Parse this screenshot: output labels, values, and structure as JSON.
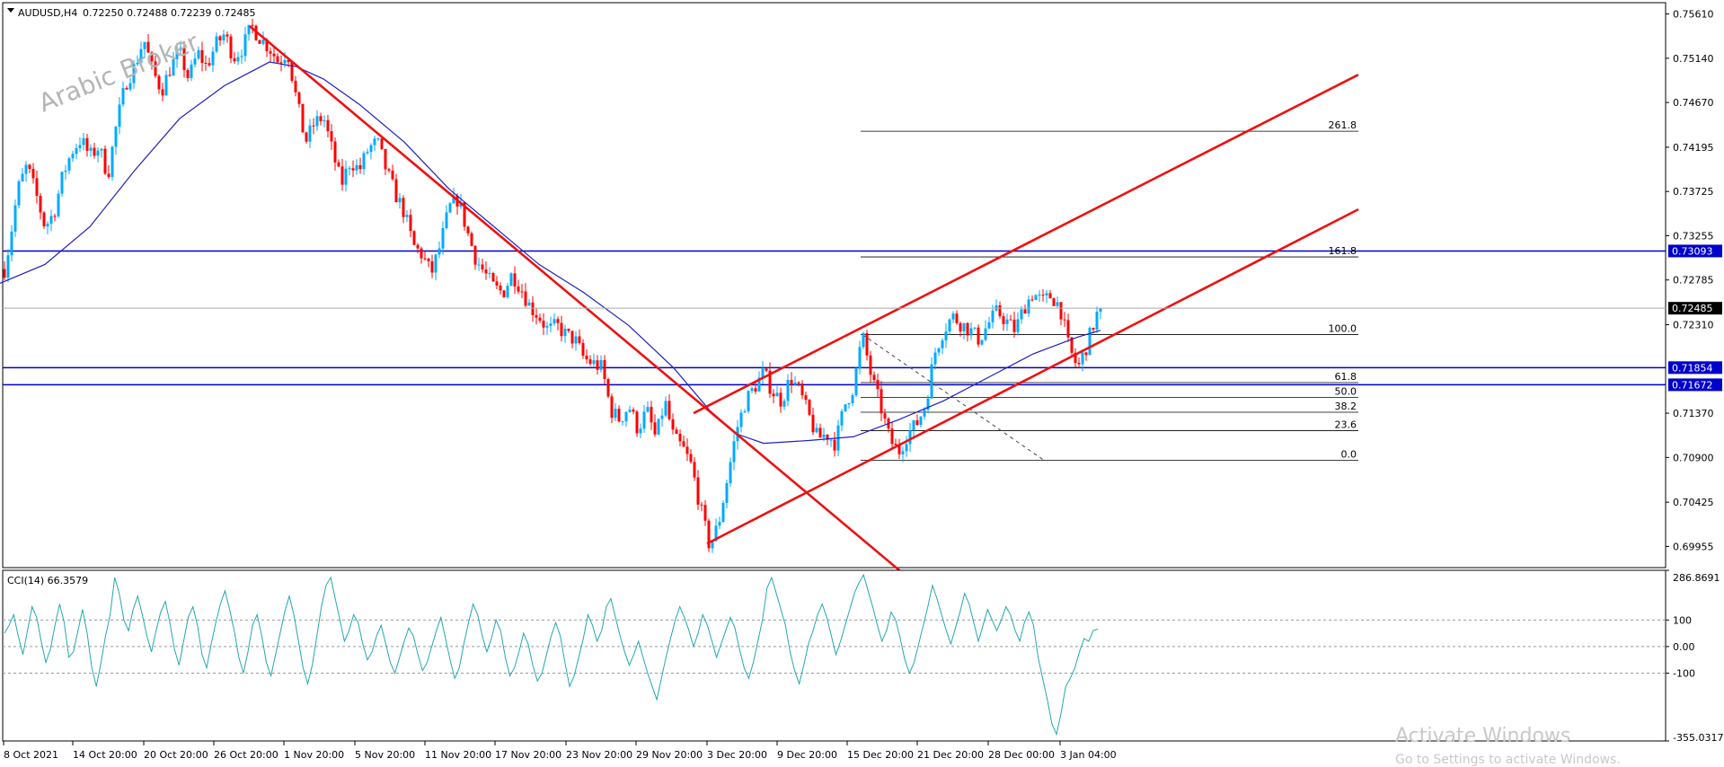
{
  "header": {
    "symbol": "AUDUSD,H4",
    "ohlc": "0.72250 0.72488 0.72239 0.72485"
  },
  "watermark": "Arabic Broker",
  "windows_notice": {
    "line1": "Activate Windows",
    "line2": "Go to Settings to activate Windows."
  },
  "chart_data": [
    {
      "type": "candlestick",
      "title": "AUDUSD,H4",
      "ylim": [
        0.6973,
        0.7573
      ],
      "y_ticks": [
        "0.75610",
        "0.75140",
        "0.74670",
        "0.74195",
        "0.73725",
        "0.73255",
        "0.72785",
        "0.72310",
        "0.71370",
        "0.70900",
        "0.70425",
        "0.69955"
      ],
      "x_ticks": [
        "8 Oct 2021",
        "14 Oct 20:00",
        "20 Oct 20:00",
        "26 Oct 20:00",
        "1 Nov 20:00",
        "5 Nov 20:00",
        "11 Nov 20:00",
        "17 Nov 20:00",
        "23 Nov 20:00",
        "29 Nov 20:00",
        "3 Dec 20:00",
        "9 Dec 20:00",
        "15 Dec 20:00",
        "21 Dec 20:00",
        "28 Dec 00:00",
        "3 Jan 04:00"
      ],
      "current_price": "0.72485",
      "price_path": [
        [
          0,
          0.7265
        ],
        [
          10,
          0.7315
        ],
        [
          20,
          0.7375
        ],
        [
          30,
          0.74
        ],
        [
          40,
          0.737
        ],
        [
          50,
          0.7335
        ],
        [
          60,
          0.735
        ],
        [
          70,
          0.739
        ],
        [
          80,
          0.7415
        ],
        [
          90,
          0.7428
        ],
        [
          100,
          0.741
        ],
        [
          110,
          0.742
        ],
        [
          120,
          0.739
        ],
        [
          130,
          0.7445
        ],
        [
          140,
          0.7488
        ],
        [
          150,
          0.7505
        ],
        [
          160,
          0.7535
        ],
        [
          170,
          0.75
        ],
        [
          180,
          0.748
        ],
        [
          190,
          0.7505
        ],
        [
          200,
          0.752
        ],
        [
          210,
          0.7492
        ],
        [
          220,
          0.752
        ],
        [
          230,
          0.7505
        ],
        [
          240,
          0.7528
        ],
        [
          250,
          0.754
        ],
        [
          260,
          0.7515
        ],
        [
          270,
          0.7525
        ],
        [
          280,
          0.7548
        ],
        [
          290,
          0.7535
        ],
        [
          300,
          0.7525
        ],
        [
          310,
          0.751
        ],
        [
          320,
          0.7522
        ],
        [
          330,
          0.747
        ],
        [
          340,
          0.7425
        ],
        [
          350,
          0.7445
        ],
        [
          360,
          0.7452
        ],
        [
          370,
          0.7415
        ],
        [
          380,
          0.738
        ],
        [
          390,
          0.7405
        ],
        [
          400,
          0.7395
        ],
        [
          410,
          0.7418
        ],
        [
          420,
          0.7425
        ],
        [
          430,
          0.7395
        ],
        [
          440,
          0.737
        ],
        [
          450,
          0.735
        ],
        [
          460,
          0.7315
        ],
        [
          470,
          0.7305
        ],
        [
          480,
          0.7285
        ],
        [
          490,
          0.7315
        ],
        [
          500,
          0.7355
        ],
        [
          510,
          0.7365
        ],
        [
          520,
          0.733
        ],
        [
          530,
          0.73
        ],
        [
          540,
          0.7285
        ],
        [
          550,
          0.727
        ],
        [
          560,
          0.7265
        ],
        [
          570,
          0.7285
        ],
        [
          580,
          0.727
        ],
        [
          590,
          0.725
        ],
        [
          600,
          0.724
        ],
        [
          610,
          0.7225
        ],
        [
          620,
          0.723
        ],
        [
          630,
          0.722
        ],
        [
          640,
          0.7215
        ],
        [
          650,
          0.7195
        ],
        [
          660,
          0.719
        ],
        [
          670,
          0.7185
        ],
        [
          680,
          0.714
        ],
        [
          690,
          0.713
        ],
        [
          700,
          0.7145
        ],
        [
          710,
          0.712
        ],
        [
          720,
          0.714
        ],
        [
          730,
          0.711
        ],
        [
          740,
          0.715
        ],
        [
          750,
          0.711
        ],
        [
          760,
          0.71
        ],
        [
          770,
          0.708
        ],
        [
          780,
          0.7035
        ],
        [
          790,
          0.6995
        ],
        [
          800,
          0.702
        ],
        [
          810,
          0.707
        ],
        [
          820,
          0.712
        ],
        [
          830,
          0.715
        ],
        [
          840,
          0.7165
        ],
        [
          850,
          0.718
        ],
        [
          860,
          0.716
        ],
        [
          870,
          0.715
        ],
        [
          880,
          0.7175
        ],
        [
          890,
          0.716
        ],
        [
          900,
          0.7135
        ],
        [
          910,
          0.711
        ],
        [
          920,
          0.7115
        ],
        [
          930,
          0.7105
        ],
        [
          940,
          0.7145
        ],
        [
          950,
          0.7165
        ],
        [
          960,
          0.722
        ],
        [
          970,
          0.7175
        ],
        [
          980,
          0.7145
        ],
        [
          990,
          0.711
        ],
        [
          1000,
          0.7095
        ],
        [
          1010,
          0.7115
        ],
        [
          1020,
          0.7125
        ],
        [
          1030,
          0.7145
        ],
        [
          1040,
          0.72
        ],
        [
          1050,
          0.7225
        ],
        [
          1060,
          0.724
        ],
        [
          1070,
          0.7232
        ],
        [
          1080,
          0.7225
        ],
        [
          1090,
          0.7215
        ],
        [
          1100,
          0.7232
        ],
        [
          1110,
          0.7245
        ],
        [
          1120,
          0.7235
        ],
        [
          1130,
          0.7225
        ],
        [
          1140,
          0.725
        ],
        [
          1150,
          0.7265
        ],
        [
          1160,
          0.7255
        ],
        [
          1170,
          0.7262
        ],
        [
          1180,
          0.725
        ],
        [
          1190,
          0.7205
        ],
        [
          1200,
          0.7185
        ],
        [
          1210,
          0.721
        ],
        [
          1220,
          0.724
        ],
        [
          1225,
          0.7248
        ]
      ],
      "moving_average_path": [
        [
          0,
          0.7275
        ],
        [
          50,
          0.7295
        ],
        [
          100,
          0.7335
        ],
        [
          150,
          0.7395
        ],
        [
          200,
          0.745
        ],
        [
          250,
          0.7485
        ],
        [
          300,
          0.751
        ],
        [
          330,
          0.7505
        ],
        [
          360,
          0.7492
        ],
        [
          400,
          0.7465
        ],
        [
          450,
          0.7425
        ],
        [
          500,
          0.7375
        ],
        [
          550,
          0.7335
        ],
        [
          600,
          0.7295
        ],
        [
          650,
          0.7265
        ],
        [
          700,
          0.723
        ],
        [
          750,
          0.7185
        ],
        [
          790,
          0.714
        ],
        [
          820,
          0.7115
        ],
        [
          850,
          0.7105
        ],
        [
          900,
          0.7108
        ],
        [
          950,
          0.7112
        ],
        [
          1000,
          0.713
        ],
        [
          1050,
          0.715
        ],
        [
          1100,
          0.7175
        ],
        [
          1150,
          0.72
        ],
        [
          1200,
          0.7218
        ],
        [
          1225,
          0.7225
        ]
      ],
      "horizontal_levels": [
        {
          "price": 0.73093,
          "label": "0.73093",
          "label_color": "#0000cc"
        },
        {
          "price": 0.71854,
          "label": "0.71854",
          "label_color": "#0000cc"
        },
        {
          "price": 0.71672,
          "label": "0.71672",
          "label_color": "#0000cc"
        }
      ],
      "fibonacci": {
        "x_start": 958,
        "x_end": 1512,
        "p100": 0.72205,
        "p0": 0.7087,
        "levels": [
          {
            "ratio": 2.618,
            "label": "261.8"
          },
          {
            "ratio": 1.618,
            "label": "161.8"
          },
          {
            "ratio": 1.0,
            "label": "100.0"
          },
          {
            "ratio": 0.618,
            "label": "61.8"
          },
          {
            "ratio": 0.5,
            "label": "50.0"
          },
          {
            "ratio": 0.382,
            "label": "38.2"
          },
          {
            "ratio": 0.236,
            "label": "23.6"
          },
          {
            "ratio": 0.0,
            "label": "0.0"
          }
        ]
      },
      "trendlines": [
        {
          "from": [
            278,
            0.7548
          ],
          "to": [
            1010,
            0.6963
          ]
        },
        {
          "from": [
            772,
            0.7137
          ],
          "to": [
            1512,
            0.74965
          ]
        },
        {
          "from": [
            787,
            0.69985
          ],
          "to": [
            1512,
            0.73535
          ]
        }
      ],
      "colors": {
        "bull": "#00aaff",
        "bear": "#ff0000",
        "moving_average": "#1f1fbf",
        "trendline": "#ee1111",
        "level": "#0000cc"
      }
    },
    {
      "type": "line",
      "title": "CCI(14) 66.3579",
      "ylim": [
        -355.0317,
        286.8691
      ],
      "y_ticks": [
        "286.8691",
        "100",
        "0.00",
        "-100",
        "-355.0317"
      ],
      "levels": [
        100,
        0,
        -100
      ],
      "series": [
        {
          "name": "CCI(14)",
          "color": "#22a8b0",
          "values": [
            50,
            80,
            120,
            40,
            -30,
            60,
            150,
            110,
            20,
            -60,
            -10,
            80,
            160,
            90,
            -40,
            -20,
            60,
            140,
            50,
            -80,
            -150,
            -60,
            40,
            120,
            260,
            200,
            100,
            60,
            140,
            190,
            120,
            40,
            -20,
            60,
            130,
            170,
            90,
            -10,
            -70,
            20,
            110,
            150,
            80,
            -30,
            -80,
            10,
            90,
            160,
            210,
            140,
            60,
            -40,
            -100,
            -20,
            80,
            120,
            40,
            -60,
            -110,
            -30,
            50,
            130,
            190,
            120,
            20,
            -80,
            -140,
            -70,
            40,
            150,
            230,
            260,
            180,
            100,
            20,
            60,
            120,
            90,
            10,
            -50,
            -20,
            40,
            80,
            10,
            -60,
            -100,
            -40,
            20,
            70,
            40,
            -30,
            -90,
            -60,
            0,
            60,
            110,
            30,
            -50,
            -120,
            -80,
            10,
            90,
            160,
            120,
            40,
            -20,
            30,
            100,
            60,
            -40,
            -110,
            -80,
            -20,
            50,
            10,
            -70,
            -130,
            -100,
            -30,
            40,
            90,
            40,
            -60,
            -150,
            -110,
            -40,
            30,
            120,
            80,
            20,
            60,
            150,
            180,
            110,
            40,
            -20,
            -70,
            -30,
            20,
            -40,
            -100,
            -150,
            -200,
            -120,
            -40,
            30,
            100,
            150,
            110,
            60,
            0,
            50,
            120,
            80,
            20,
            -40,
            10,
            60,
            110,
            70,
            -10,
            -80,
            -120,
            -60,
            20,
            100,
            220,
            260,
            200,
            140,
            80,
            -20,
            -90,
            -140,
            -70,
            10,
            60,
            120,
            160,
            110,
            40,
            -30,
            20,
            80,
            140,
            200,
            240,
            270,
            210,
            150,
            80,
            20,
            60,
            130,
            100,
            30,
            -50,
            -100,
            -60,
            10,
            80,
            150,
            230,
            180,
            120,
            60,
            10,
            70,
            130,
            200,
            160,
            90,
            20,
            80,
            140,
            100,
            60,
            100,
            150,
            120,
            60,
            20,
            90,
            130,
            80,
            -40,
            -120,
            -200,
            -290,
            -330,
            -250,
            -150,
            -120,
            -80,
            -20,
            30,
            20,
            60,
            66
          ]
        }
      ]
    }
  ]
}
